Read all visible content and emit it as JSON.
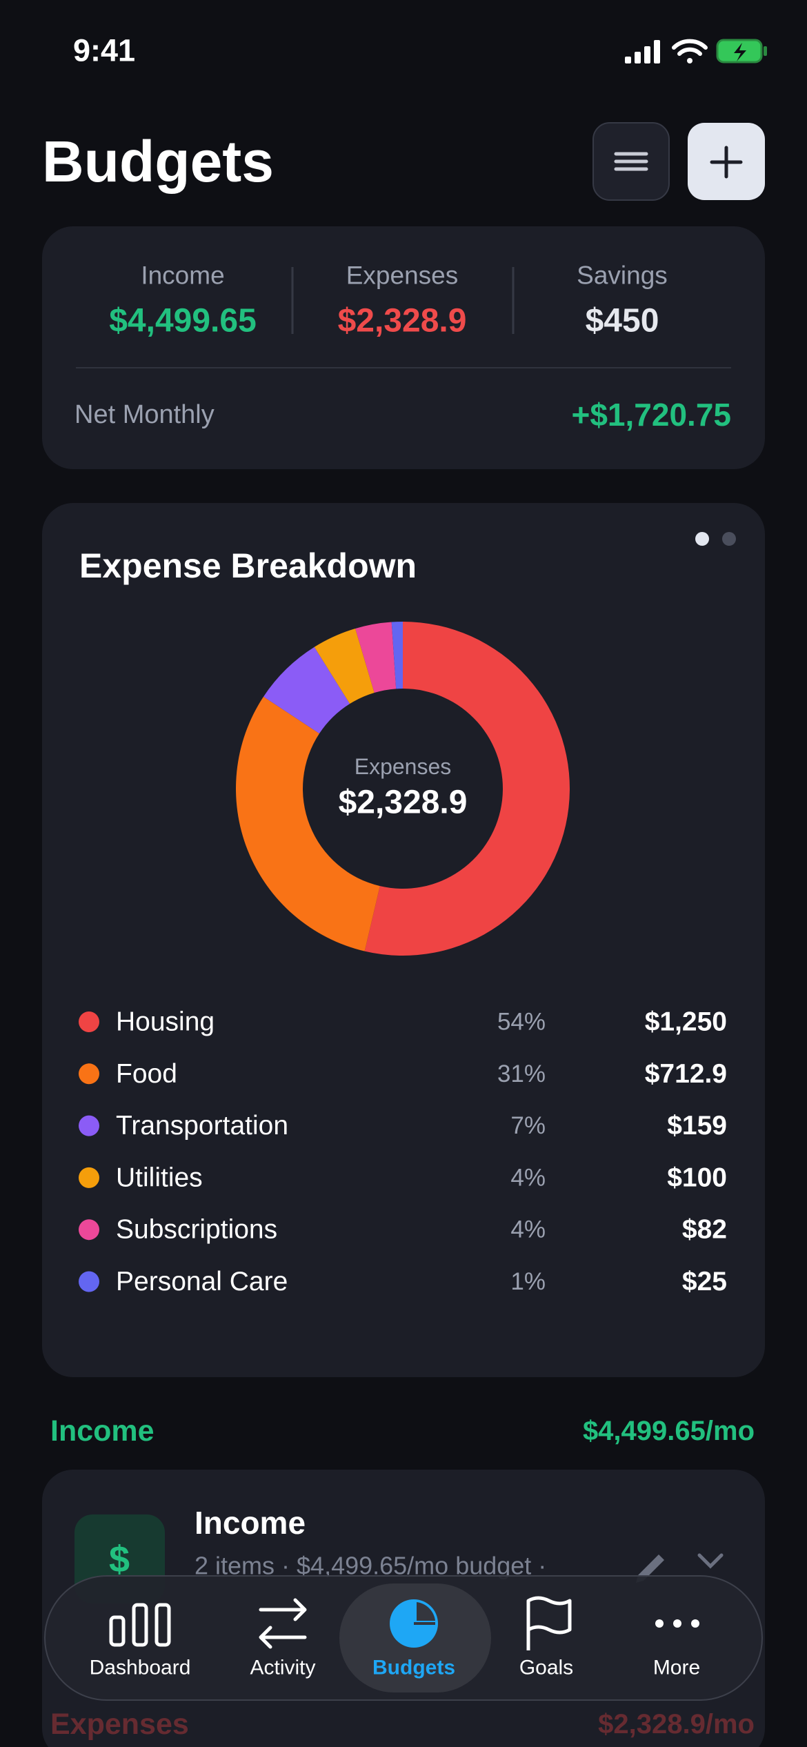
{
  "status_bar": {
    "time": "9:41"
  },
  "header": {
    "title": "Budgets"
  },
  "summary": {
    "items": [
      {
        "label": "Income",
        "value": "$4,499.65",
        "color": "#22c07f"
      },
      {
        "label": "Expenses",
        "value": "$2,328.9",
        "color": "#ef4b4b"
      },
      {
        "label": "Savings",
        "value": "$450",
        "color": "#e6e8ee"
      }
    ],
    "net_label": "Net Monthly",
    "net_value": "+$1,720.75"
  },
  "expense_breakdown": {
    "title": "Expense Breakdown",
    "center_label": "Expenses",
    "center_value": "$2,328.9",
    "categories": [
      "Housing",
      "Food",
      "Transportation",
      "Utilities",
      "Subscriptions",
      "Personal Care"
    ],
    "colors": [
      "#ef4444",
      "#f97316",
      "#8b5cf6",
      "#f59e0b",
      "#ec4899",
      "#6366f1"
    ],
    "values": [
      1250,
      712.9,
      159,
      100,
      82,
      25
    ],
    "value_labels": [
      "$1,250",
      "$712.9",
      "$159",
      "$100",
      "$82",
      "$25"
    ],
    "percent_labels": [
      "54%",
      "31%",
      "7%",
      "4%",
      "4%",
      "1%"
    ]
  },
  "income_section": {
    "title": "Income",
    "total": "$4,499.65/mo",
    "card": {
      "icon": "$",
      "title": "Income",
      "subtitle": "2 items · $4,499.65/mo budget ·"
    }
  },
  "expenses_section": {
    "title": "Expenses",
    "total": "$2,328.9/mo"
  },
  "nav": {
    "items": [
      "Dashboard",
      "Activity",
      "Budgets",
      "Goals",
      "More"
    ]
  }
}
